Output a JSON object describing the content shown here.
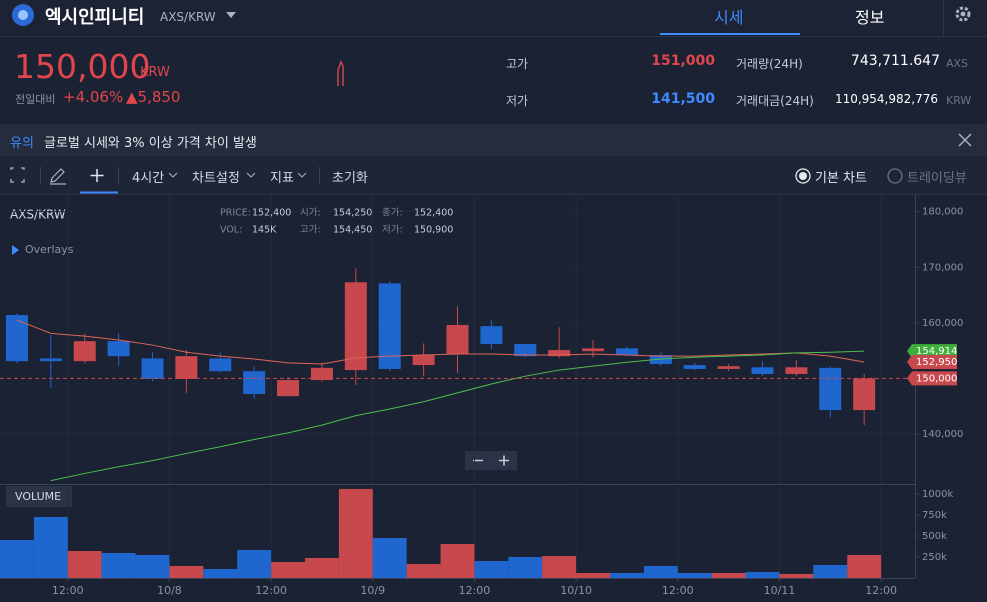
{
  "header": {
    "name": "엑시인피니티",
    "pair": "AXS/KRW",
    "tabs": [
      "시세",
      "정보"
    ]
  },
  "ticker": {
    "price": "150,000",
    "unit": "KRW",
    "change_label": "전일대비",
    "change_pct": "+4.06%",
    "change_abs": "▲5,850",
    "high": {
      "label": "고가",
      "value": "151,000"
    },
    "low": {
      "label": "저가",
      "value": "141,500"
    },
    "volume": {
      "label": "거래량(24H)",
      "value": "743,711.647",
      "unit": "AXS"
    },
    "amount": {
      "label": "거래대금(24H)",
      "value": "110,954,982,776",
      "unit": "KRW"
    }
  },
  "notice": {
    "tag": "유의",
    "text": "글로벌 시세와 3% 이상 가격 차이 발생"
  },
  "toolbar": {
    "items": [
      "4시간",
      "차트설정",
      "지표",
      "초기화"
    ],
    "views": [
      "기본 차트",
      "트레이딩뷰"
    ]
  },
  "chart_data": {
    "type": "candlestick",
    "title": "AXS/KRW",
    "overlays_label": "Overlays",
    "volume_label": "VOLUME",
    "info": [
      {
        "label": "PRICE:",
        "value": "152,400"
      },
      {
        "label": "시가:",
        "value": "154,250"
      },
      {
        "label": "종가:",
        "value": "152,400"
      },
      {
        "label": "VOL:",
        "value": "145K"
      },
      {
        "label": "고가:",
        "value": "154,450"
      },
      {
        "label": "저가:",
        "value": "150,900"
      }
    ],
    "up_color": "#c8494d",
    "down_color": "#1f67cf",
    "open": [
      161400,
      153600,
      153100,
      156700,
      153600,
      149900,
      153600,
      151300,
      146800,
      149700,
      151500,
      167100,
      152400,
      154400,
      159400,
      156200,
      154000,
      154900,
      155400,
      154200,
      152400,
      151700,
      152000,
      150800,
      151900,
      144300
    ],
    "high": [
      161700,
      157800,
      158100,
      158100,
      154700,
      155100,
      154700,
      152200,
      150300,
      152800,
      169800,
      167500,
      156300,
      163000,
      160500,
      156200,
      159200,
      156900,
      155800,
      154700,
      152800,
      152600,
      153100,
      153300,
      152200,
      150800
    ],
    "low": [
      152700,
      148300,
      152700,
      152200,
      149500,
      147400,
      151000,
      146300,
      146700,
      149400,
      148800,
      151300,
      150400,
      151000,
      155300,
      153800,
      153700,
      153800,
      154000,
      152200,
      151500,
      151300,
      150400,
      150400,
      142900,
      141600
    ],
    "close": [
      153100,
      153100,
      156700,
      154000,
      149900,
      154000,
      151300,
      147200,
      149700,
      151900,
      167300,
      151700,
      154200,
      159600,
      156200,
      154000,
      155100,
      155400,
      154200,
      152600,
      151700,
      152200,
      150800,
      152000,
      144300,
      150000
    ],
    "ma": [
      {
        "color": "#e0645a",
        "values": [
          160500,
          158100,
          157600,
          156900,
          156000,
          154700,
          154000,
          153500,
          152800,
          152600,
          153700,
          154000,
          154200,
          154400,
          154400,
          154200,
          154200,
          154400,
          154200,
          154000,
          154000,
          154200,
          154400,
          154600,
          154000,
          152950
        ]
      },
      {
        "color": "#4cbf4a",
        "values": [
          null,
          131600,
          132900,
          134100,
          135200,
          136500,
          137700,
          139000,
          140200,
          141600,
          143300,
          144500,
          145800,
          147400,
          149000,
          150400,
          151500,
          152200,
          152900,
          153500,
          153800,
          154000,
          154200,
          154600,
          154700,
          154914
        ]
      }
    ],
    "price_tags": [
      {
        "value": 154914,
        "label": "154,914",
        "color": "#3fae3a"
      },
      {
        "value": 152950,
        "label": "152,950",
        "color": "#c8494d"
      },
      {
        "value": 150000,
        "label": "150,000",
        "color": "#c8494d",
        "line": "dashed"
      }
    ],
    "xlim": [
      0,
      27
    ],
    "xticks": [
      {
        "value": 2,
        "label": "12:00"
      },
      {
        "value": 5,
        "label": "10/8"
      },
      {
        "value": 8,
        "label": "12:00"
      },
      {
        "value": 11,
        "label": "10/9"
      },
      {
        "value": 14,
        "label": "12:00"
      },
      {
        "value": 17,
        "label": "10/10"
      },
      {
        "value": 20,
        "label": "12:00"
      },
      {
        "value": 23,
        "label": "10/11"
      },
      {
        "value": 26,
        "label": "12:00"
      }
    ],
    "ylim": [
      131000,
      183000
    ],
    "yticks": [
      {
        "value": 140000,
        "label": "140,000"
      },
      {
        "value": 160000,
        "label": "160,000"
      },
      {
        "value": 170000,
        "label": "170,000"
      },
      {
        "value": 180000,
        "label": "180,000"
      }
    ],
    "grid": true,
    "volume": {
      "values": [
        452,
        726,
        321,
        298,
        274,
        143,
        107,
        333,
        190,
        238,
        1060,
        476,
        167,
        405,
        202,
        250,
        262,
        60,
        60,
        143,
        60,
        60,
        71,
        48,
        155,
        274
      ],
      "ylim": [
        0,
        1083
      ],
      "yticks": [
        {
          "value": 250,
          "label": "250k"
        },
        {
          "value": 500,
          "label": "500k"
        },
        {
          "value": 750,
          "label": "750k"
        },
        {
          "value": 1000,
          "label": "1000k"
        }
      ]
    }
  }
}
